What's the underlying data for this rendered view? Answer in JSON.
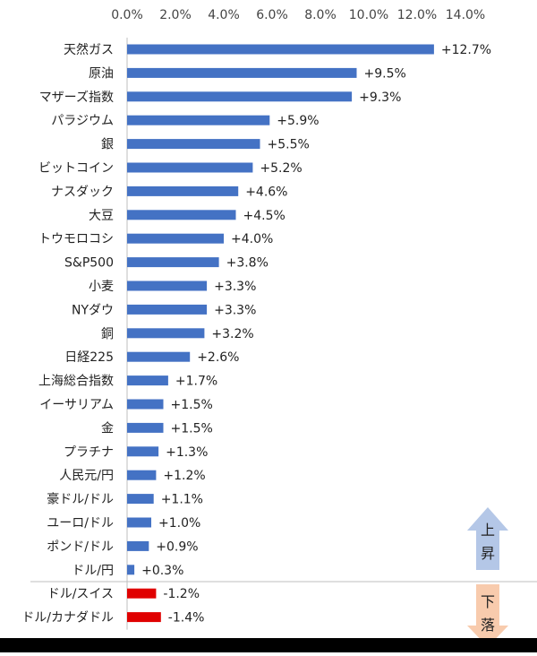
{
  "chart_data": {
    "type": "bar",
    "orientation": "horizontal",
    "xlim": [
      0,
      14
    ],
    "x_tick_labels": [
      "0.0%",
      "2.0%",
      "4.0%",
      "6.0%",
      "8.0%",
      "10.0%",
      "12.0%",
      "14.0%"
    ],
    "x_tick_values": [
      0,
      2,
      4,
      6,
      8,
      10,
      12,
      14
    ],
    "x_axis_position": "top",
    "grid": false,
    "legend": false,
    "categories": [
      "天然ガス",
      "原油",
      "マザーズ指数",
      "パラジウム",
      "銀",
      "ビットコイン",
      "ナスダック",
      "大豆",
      "トウモロコシ",
      "S&P500",
      "小麦",
      "NYダウ",
      "銅",
      "日経225",
      "上海総合指数",
      "イーサリアム",
      "金",
      "プラチナ",
      "人民元/円",
      "豪ドル/ドル",
      "ユーロ/ドル",
      "ポンド/ドル",
      "ドル/円",
      "ドル/スイス",
      "ドル/カナダドル"
    ],
    "values": [
      12.7,
      9.5,
      9.3,
      5.9,
      5.5,
      5.2,
      4.6,
      4.5,
      4.0,
      3.8,
      3.3,
      3.3,
      3.2,
      2.6,
      1.7,
      1.5,
      1.5,
      1.3,
      1.2,
      1.1,
      1.0,
      0.9,
      0.3,
      -1.2,
      -1.4
    ],
    "data_labels": [
      "+12.7%",
      "+9.5%",
      "+9.3%",
      "+5.9%",
      "+5.5%",
      "+5.2%",
      "+4.6%",
      "+4.5%",
      "+4.0%",
      "+3.8%",
      "+3.3%",
      "+3.3%",
      "+3.2%",
      "+2.6%",
      "+1.7%",
      "+1.5%",
      "+1.5%",
      "+1.3%",
      "+1.2%",
      "+1.1%",
      "+1.0%",
      "+0.9%",
      "+0.3%",
      "-1.2%",
      "-1.4%"
    ],
    "colors": {
      "positive": "#4472C4",
      "negative": "#E00000"
    },
    "annotations": {
      "up_label": [
        "上",
        "昇"
      ],
      "down_label": [
        "下",
        "落"
      ],
      "up_arrow_color": "#B4C7E7",
      "down_arrow_color": "#F8CBAD"
    }
  }
}
